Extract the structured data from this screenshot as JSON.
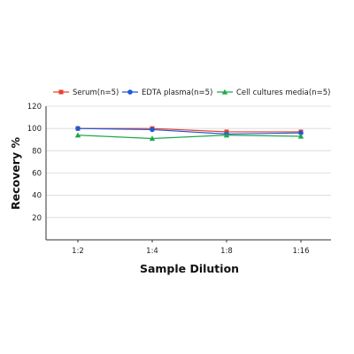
{
  "chart_data": {
    "type": "line",
    "title": "",
    "xlabel": "Sample Dilution",
    "ylabel": "Recovery %",
    "categories": [
      "1:2",
      "1:4",
      "1:8",
      "1:16"
    ],
    "ylim": [
      0,
      120
    ],
    "yticks": [
      20,
      40,
      60,
      80,
      100,
      120
    ],
    "grid": true,
    "legend_position": "top",
    "series": [
      {
        "name": "Serum(n=5)",
        "values": [
          100,
          100,
          97,
          97
        ],
        "color": "#e8402f",
        "marker": "square"
      },
      {
        "name": "EDTA plasma(n=5)",
        "values": [
          100,
          99,
          95,
          96
        ],
        "color": "#2158d6",
        "marker": "circle"
      },
      {
        "name": "Cell cultures media(n=5)",
        "values": [
          94,
          91,
          94,
          93
        ],
        "color": "#1fa84a",
        "marker": "triangle"
      }
    ]
  }
}
